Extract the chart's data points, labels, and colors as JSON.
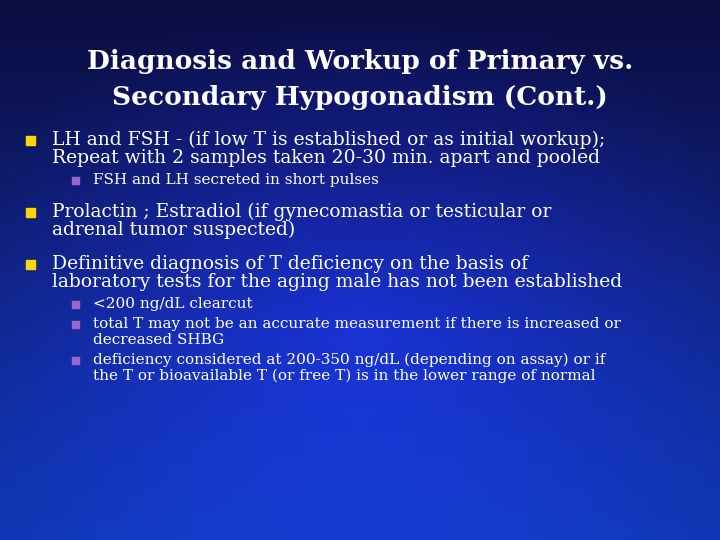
{
  "title_line1": "Diagnosis and Workup of Primary vs.",
  "title_line2": "Secondary Hypogonadism (Cont.)",
  "title_color": "#ffffff",
  "title_fontsize": 19,
  "text_color": "#ffffff",
  "bullet_color_main": "#ffd700",
  "bullet_color_sub": "#9966cc",
  "body_fontsize": 13.5,
  "sub_fontsize": 11,
  "items": [
    {
      "text_lines": [
        "LH and FSH - (if low T is established or as initial workup);",
        "Repeat with 2 samples taken 20-30 min. apart and pooled"
      ],
      "subitems": [
        [
          "FSH and LH secreted in short pulses"
        ]
      ]
    },
    {
      "text_lines": [
        "Prolactin ; Estradiol (if gynecomastia or testicular or",
        "adrenal tumor suspected)"
      ],
      "subitems": []
    },
    {
      "text_lines": [
        "Definitive diagnosis of T deficiency on the basis of",
        "laboratory tests for the aging male has not been established"
      ],
      "subitems": [
        [
          "<200 ng/dL clearcut"
        ],
        [
          "total T may not be an accurate measurement if there is increased or",
          "decreased SHBG"
        ],
        [
          "deficiency considered at 200-350 ng/dL (depending on assay) or if",
          "the T or bioavailable T (or free T) is in the lower range of normal"
        ]
      ]
    }
  ]
}
